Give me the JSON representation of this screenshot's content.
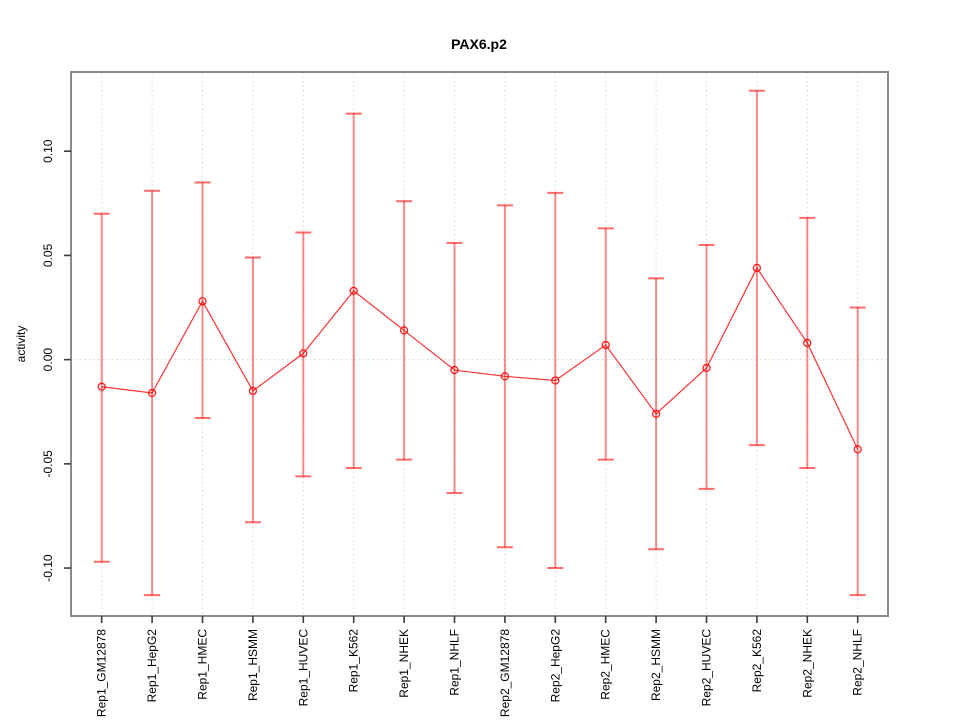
{
  "chart_data": {
    "type": "line",
    "title": "PAX6.p2",
    "xlabel": "",
    "ylabel": "activity",
    "legend": "none",
    "grid": "dotted vertical line at each category; dotted horizontal line at 0",
    "categories": [
      "Rep1_GM12878",
      "Rep1_HepG2",
      "Rep1_HMEC",
      "Rep1_HSMM",
      "Rep1_HUVEC",
      "Rep1_K562",
      "Rep1_NHEK",
      "Rep1_NHLF",
      "Rep2_GM12878",
      "Rep2_HepG2",
      "Rep2_HMEC",
      "Rep2_HSMM",
      "Rep2_HUVEC",
      "Rep2_K562",
      "Rep2_NHEK",
      "Rep2_NHLF"
    ],
    "series": [
      {
        "name": "activity",
        "values": [
          -0.013,
          -0.016,
          0.028,
          -0.015,
          0.003,
          0.033,
          0.014,
          -0.005,
          -0.008,
          -0.01,
          0.007,
          -0.026,
          -0.004,
          0.044,
          0.008,
          -0.043
        ],
        "upper": [
          0.07,
          0.081,
          0.085,
          0.049,
          0.061,
          0.118,
          0.076,
          0.056,
          0.074,
          0.08,
          0.063,
          0.039,
          0.055,
          0.129,
          0.068,
          0.025
        ],
        "lower": [
          -0.097,
          -0.113,
          -0.028,
          -0.078,
          -0.056,
          -0.052,
          -0.048,
          -0.064,
          -0.09,
          -0.1,
          -0.048,
          -0.091,
          -0.062,
          -0.041,
          -0.052,
          -0.113
        ]
      }
    ],
    "yticks": [
      0.1,
      0.05,
      0.0,
      -0.05,
      -0.1
    ],
    "ytick_labels": [
      "0.10",
      "0.05",
      "0.00",
      "-0.05",
      "-0.10"
    ],
    "ylim": [
      -0.123,
      0.138
    ],
    "colors": {
      "error_bar": "rgba(255,0,0,0.45)",
      "error_cap": "rgba(255,0,0,0.58)",
      "line": "rgba(255,0,0,0.80)",
      "point": "rgba(255,0,0,0.88)",
      "grid": "#d6d6d6",
      "box": "#8a8a8a",
      "tick": "#3d3d3d",
      "text": "#000000"
    }
  }
}
